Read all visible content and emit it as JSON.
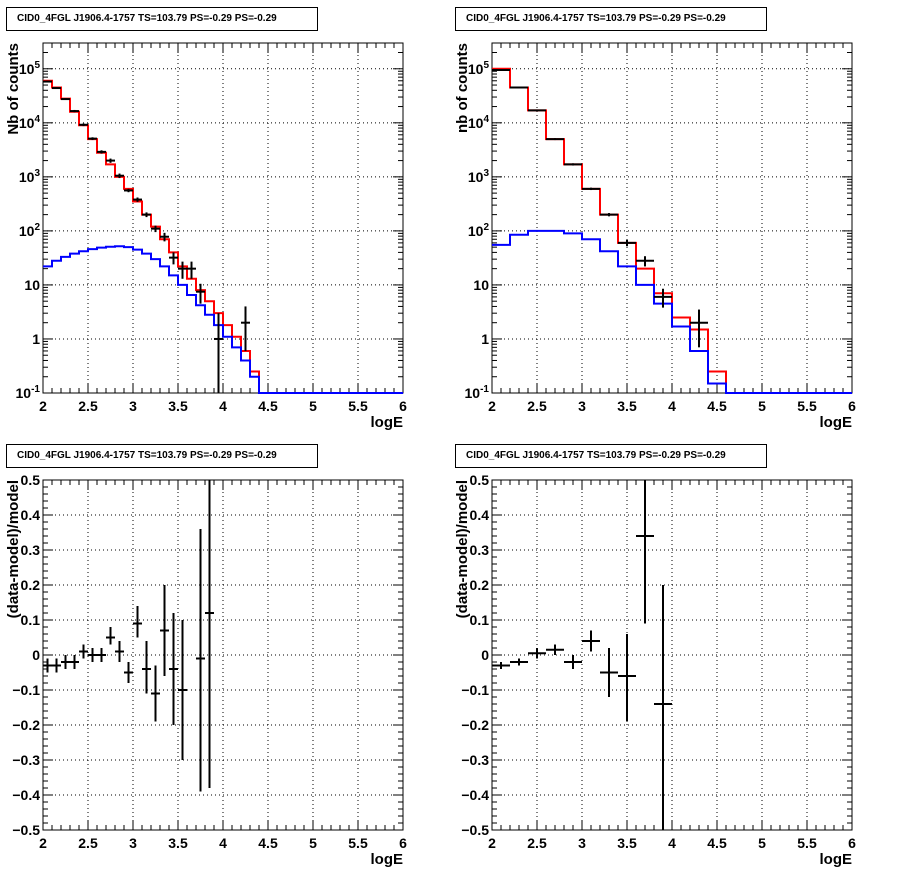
{
  "panel_title": "CID0_4FGL J1906.4-1757 TS=103.79 PS=-0.29 PS=-0.29",
  "colors": {
    "data": "#000000",
    "model_total": "#ff0000",
    "model_source": "#0000ff",
    "grid": "#000000"
  },
  "chart_data": [
    {
      "type": "line",
      "title": "CID0_4FGL J1906.4-1757 TS=103.79 PS=-0.29 PS=-0.29",
      "xlabel": "logE",
      "ylabel": "Nb of counts",
      "xlim": [
        2,
        6
      ],
      "ylim": [
        0.1,
        300000
      ],
      "yscale": "log",
      "grid": true,
      "xticks": [
        "2",
        "2.5",
        "3",
        "3.5",
        "4",
        "4.5",
        "5",
        "5.5",
        "6"
      ],
      "yticks": [
        "10^-1",
        "1",
        "10",
        "10^2",
        "10^3",
        "10^4",
        "10^5"
      ],
      "bin_edges": [
        2.0,
        2.1,
        2.2,
        2.3,
        2.4,
        2.5,
        2.6,
        2.7,
        2.8,
        2.9,
        3.0,
        3.1,
        3.2,
        3.3,
        3.4,
        3.5,
        3.6,
        3.7,
        3.8,
        3.9,
        4.0,
        4.1,
        4.2,
        4.3,
        4.4,
        4.5,
        4.6,
        4.7,
        4.8,
        4.9,
        5.0,
        5.1,
        5.2,
        5.3,
        5.4,
        5.5,
        5.6,
        5.7,
        5.8,
        5.9,
        6.0
      ],
      "series": [
        {
          "type": "step",
          "color": "#ff0000",
          "values": [
            60000,
            45000,
            28000,
            16000,
            9000,
            5000,
            2800,
            1700,
            1000,
            600,
            350,
            200,
            120,
            70,
            40,
            22,
            13,
            8,
            5,
            3,
            1.8,
            1.1,
            0.6,
            0.25,
            0.1,
            0.1,
            0.1,
            0.1,
            0.1,
            0.1,
            0.1,
            0.1,
            0.1,
            0.1,
            0.1,
            0.1,
            0.1,
            0.1,
            0.1,
            0.1
          ]
        },
        {
          "type": "step",
          "color": "#0000ff",
          "values": [
            22,
            28,
            33,
            38,
            42,
            46,
            49,
            51,
            52,
            50,
            45,
            38,
            30,
            22,
            15,
            10,
            6.5,
            4.2,
            2.8,
            1.8,
            1.1,
            0.7,
            0.4,
            0.2,
            0.1,
            0.1,
            0.1,
            0.1,
            0.1,
            0.1,
            0.1,
            0.1,
            0.1,
            0.1,
            0.1,
            0.1,
            0.1,
            0.1,
            0.1,
            0.1
          ]
        },
        {
          "type": "points",
          "color": "#000000",
          "x": [
            2.05,
            2.15,
            2.25,
            2.35,
            2.45,
            2.55,
            2.65,
            2.75,
            2.85,
            2.95,
            3.05,
            3.15,
            3.25,
            3.35,
            3.45,
            3.55,
            3.65,
            3.75,
            3.95,
            4.25
          ],
          "y": [
            58000,
            44000,
            27500,
            16500,
            9200,
            5100,
            2900,
            2000,
            1050,
            560,
            380,
            200,
            110,
            78,
            32,
            20,
            20,
            7.5,
            1,
            2
          ],
          "ylo": [
            56000,
            42500,
            26500,
            15700,
            8700,
            4800,
            2700,
            1820,
            950,
            520,
            345,
            180,
            95,
            64,
            24,
            13,
            13,
            4.5,
            0.1,
            0.6
          ],
          "yhi": [
            60000,
            45500,
            28500,
            17300,
            9700,
            5400,
            3100,
            2180,
            1150,
            600,
            415,
            220,
            125,
            92,
            40,
            27,
            27,
            10.5,
            3,
            4
          ]
        }
      ]
    },
    {
      "type": "line",
      "title": "CID0_4FGL J1906.4-1757 TS=103.79 PS=-0.29 PS=-0.29",
      "xlabel": "logE",
      "ylabel": "nb of counts",
      "xlim": [
        2,
        6
      ],
      "ylim": [
        0.1,
        300000
      ],
      "yscale": "log",
      "grid": true,
      "xticks": [
        "2",
        "2.5",
        "3",
        "3.5",
        "4",
        "4.5",
        "5",
        "5.5",
        "6"
      ],
      "yticks": [
        "10^-1",
        "1",
        "10",
        "10^2",
        "10^3",
        "10^4",
        "10^5"
      ],
      "bin_edges": [
        2.0,
        2.2,
        2.4,
        2.6,
        2.8,
        3.0,
        3.2,
        3.4,
        3.6,
        3.8,
        4.0,
        4.2,
        4.4,
        4.6,
        4.8,
        5.0,
        5.2,
        5.4,
        5.6,
        5.8,
        6.0
      ],
      "series": [
        {
          "type": "step",
          "color": "#ff0000",
          "values": [
            100000,
            45000,
            17000,
            5000,
            1700,
            600,
            200,
            60,
            20,
            7,
            2.5,
            1.5,
            0.25,
            0.1,
            0.1,
            0.1,
            0.1,
            0.1,
            0.1,
            0.1
          ]
        },
        {
          "type": "step",
          "color": "#0000ff",
          "values": [
            55,
            85,
            100,
            100,
            90,
            70,
            42,
            22,
            10,
            4.5,
            1.7,
            0.6,
            0.15,
            0.1,
            0.1,
            0.1,
            0.1,
            0.1,
            0.1,
            0.1
          ]
        },
        {
          "type": "points",
          "color": "#000000",
          "x": [
            2.1,
            2.3,
            2.5,
            2.7,
            2.9,
            3.1,
            3.3,
            3.5,
            3.7,
            3.9,
            4.3
          ],
          "y": [
            95000,
            45000,
            17000,
            5000,
            1700,
            600,
            200,
            60,
            28,
            6,
            2
          ],
          "ylo": [
            93500,
            44300,
            16600,
            4800,
            1620,
            570,
            186,
            52,
            22,
            3.8,
            0.7
          ],
          "yhi": [
            96500,
            45700,
            17400,
            5200,
            1780,
            630,
            214,
            68,
            34,
            8.5,
            3.5
          ]
        }
      ]
    },
    {
      "type": "scatter",
      "title": "CID0_4FGL J1906.4-1757 TS=103.79 PS=-0.29 PS=-0.29",
      "xlabel": "logE",
      "ylabel": "(data-model)/model",
      "xlim": [
        2,
        6
      ],
      "ylim": [
        -0.5,
        0.5
      ],
      "grid": true,
      "xticks": [
        "2",
        "2.5",
        "3",
        "3.5",
        "4",
        "4.5",
        "5",
        "5.5",
        "6"
      ],
      "yticks": [
        "-0.5",
        "-0.4",
        "-0.3",
        "-0.2",
        "-0.1",
        "0",
        "0.1",
        "0.2",
        "0.3",
        "0.4",
        "0.5"
      ],
      "series": [
        {
          "type": "points",
          "color": "#000000",
          "xerr": 0.05,
          "x": [
            2.05,
            2.15,
            2.25,
            2.35,
            2.45,
            2.55,
            2.65,
            2.75,
            2.85,
            2.95,
            3.05,
            3.15,
            3.25,
            3.35,
            3.45,
            3.55,
            3.75,
            3.85
          ],
          "y": [
            -0.03,
            -0.03,
            -0.02,
            -0.02,
            0.01,
            0.0,
            0.0,
            0.05,
            0.01,
            -0.05,
            0.09,
            -0.04,
            -0.11,
            0.07,
            -0.04,
            -0.1,
            -0.01,
            0.12
          ],
          "ylo": [
            -0.05,
            -0.05,
            -0.04,
            -0.04,
            -0.01,
            -0.02,
            -0.02,
            0.03,
            -0.02,
            -0.08,
            0.05,
            -0.11,
            -0.19,
            -0.06,
            -0.2,
            -0.3,
            -0.39,
            -0.38
          ],
          "yhi": [
            -0.01,
            -0.01,
            0.0,
            0.0,
            0.03,
            0.02,
            0.02,
            0.08,
            0.04,
            -0.02,
            0.14,
            0.04,
            -0.03,
            0.2,
            0.12,
            0.1,
            0.36,
            0.5
          ]
        }
      ]
    },
    {
      "type": "scatter",
      "title": "CID0_4FGL J1906.4-1757 TS=103.79 PS=-0.29 PS=-0.29",
      "xlabel": "logE",
      "ylabel": "(data-model)/model",
      "xlim": [
        2,
        6
      ],
      "ylim": [
        -0.5,
        0.5
      ],
      "grid": true,
      "xticks": [
        "2",
        "2.5",
        "3",
        "3.5",
        "4",
        "4.5",
        "5",
        "5.5",
        "6"
      ],
      "yticks": [
        "-0.5",
        "-0.4",
        "-0.3",
        "-0.2",
        "-0.1",
        "0",
        "0.1",
        "0.2",
        "0.3",
        "0.4",
        "0.5"
      ],
      "series": [
        {
          "type": "points",
          "color": "#000000",
          "xerr": 0.1,
          "x": [
            2.1,
            2.3,
            2.5,
            2.7,
            2.9,
            3.1,
            3.3,
            3.5,
            3.7,
            3.9
          ],
          "y": [
            -0.03,
            -0.02,
            0.005,
            0.015,
            -0.02,
            0.04,
            -0.05,
            -0.06,
            0.34,
            -0.14
          ],
          "ylo": [
            -0.04,
            -0.03,
            -0.01,
            0.0,
            -0.04,
            0.01,
            -0.12,
            -0.19,
            0.09,
            -0.5
          ],
          "yhi": [
            -0.02,
            -0.01,
            0.02,
            0.03,
            0.0,
            0.07,
            0.02,
            0.06,
            0.5,
            0.2
          ]
        }
      ]
    }
  ]
}
